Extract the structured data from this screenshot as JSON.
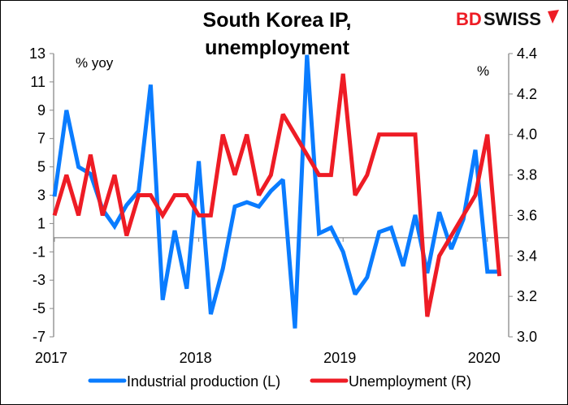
{
  "brand": {
    "logo_text": "BDSWISS",
    "logo_part_red": "BD",
    "logo_part_black": "SWISS"
  },
  "chart_data": {
    "type": "line",
    "title": [
      "South Korea IP,",
      "unemployment"
    ],
    "left_axis_label": "% yoy",
    "right_axis_label": "%",
    "x_tick_labels": [
      "2017",
      "2018",
      "2019",
      "2020"
    ],
    "x": [
      "2017-01",
      "2017-02",
      "2017-03",
      "2017-04",
      "2017-05",
      "2017-06",
      "2017-07",
      "2017-08",
      "2017-09",
      "2017-10",
      "2017-11",
      "2017-12",
      "2018-01",
      "2018-02",
      "2018-03",
      "2018-04",
      "2018-05",
      "2018-06",
      "2018-07",
      "2018-08",
      "2018-09",
      "2018-10",
      "2018-11",
      "2018-12",
      "2019-01",
      "2019-02",
      "2019-03",
      "2019-04",
      "2019-05",
      "2019-06",
      "2019-07",
      "2019-08",
      "2019-09",
      "2019-10",
      "2019-11",
      "2019-12",
      "2020-01",
      "2020-02"
    ],
    "ylim_left": [
      -7,
      13
    ],
    "yticks_left": [
      "13",
      "11",
      "9",
      "7",
      "5",
      "3",
      "1",
      "-1",
      "-3",
      "-5",
      "-7"
    ],
    "ylim_right": [
      3.0,
      4.4
    ],
    "yticks_right": [
      "4.4",
      "4.2",
      "4.0",
      "3.8",
      "3.6",
      "3.4",
      "3.2",
      "3.0"
    ],
    "legend_position": "bottom",
    "series": [
      {
        "name": "Industrial production (L)",
        "axis": "left",
        "color": "#0a7cff",
        "values": [
          2.9,
          9.0,
          5.0,
          4.5,
          2.0,
          0.8,
          2.3,
          3.3,
          10.8,
          -4.4,
          0.5,
          -3.6,
          5.4,
          -5.4,
          -2.2,
          2.2,
          2.5,
          2.2,
          3.3,
          4.1,
          -6.4,
          12.9,
          0.3,
          0.7,
          -1.0,
          -4.0,
          -2.8,
          0.4,
          0.7,
          -2.0,
          1.6,
          -2.5,
          1.8,
          -0.8,
          1.3,
          6.2,
          -2.4,
          -2.4
        ]
      },
      {
        "name": "Unemployment (R)",
        "axis": "right",
        "color": "#ee1c25",
        "values": [
          3.6,
          3.8,
          3.6,
          3.9,
          3.6,
          3.8,
          3.5,
          3.7,
          3.7,
          3.6,
          3.7,
          3.7,
          3.6,
          3.6,
          4.0,
          3.8,
          4.0,
          3.7,
          3.8,
          4.1,
          4.0,
          3.9,
          3.8,
          3.8,
          4.3,
          3.7,
          3.8,
          4.0,
          4.0,
          4.0,
          4.0,
          3.1,
          3.4,
          3.5,
          3.6,
          3.7,
          4.0,
          3.3
        ]
      }
    ]
  }
}
